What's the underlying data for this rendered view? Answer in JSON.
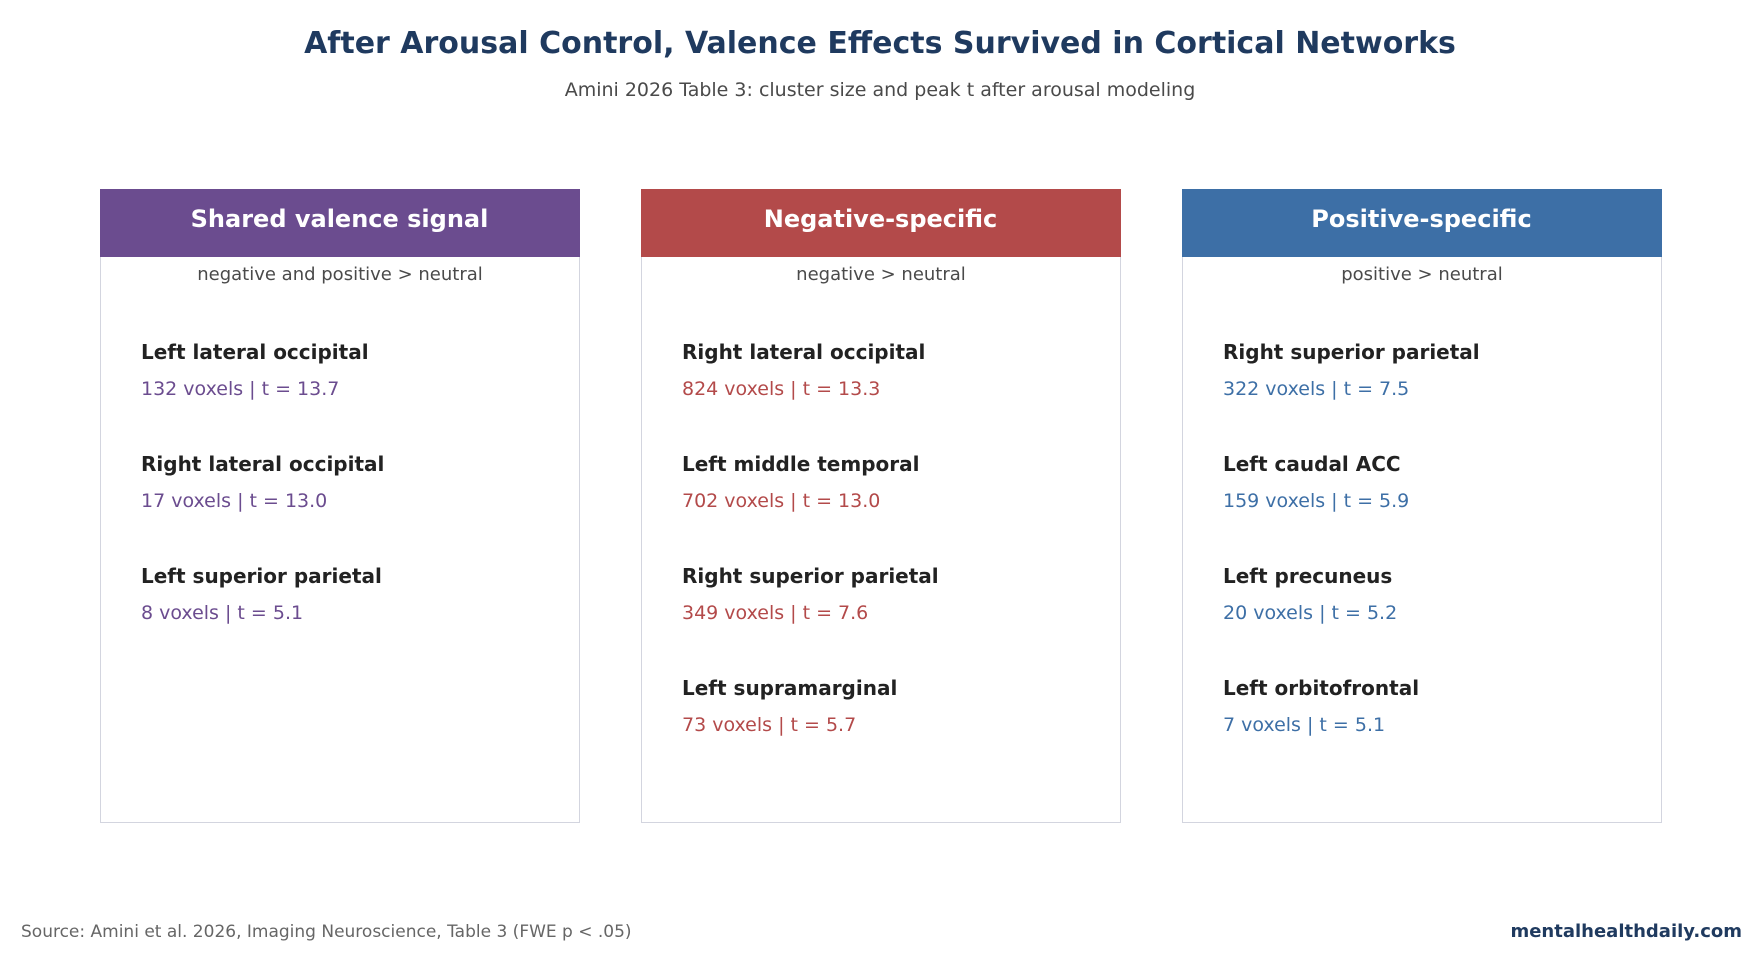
{
  "title": "After Arousal Control, Valence Effects Survived in Cortical Networks",
  "subtitle": "Amini 2026 Table 3: cluster size and peak t after arousal modeling",
  "source": "Source: Amini et al. 2026, Imaging Neuroscience, Table 3 (FWE p < .05)",
  "brand": "mentalhealthdaily.com",
  "chart_data": {
    "type": "table",
    "panels": [
      {
        "title": "Shared valence signal",
        "description": "negative and positive > neutral",
        "color": "#6b4c8f",
        "regions": [
          {
            "name": "Left lateral occipital",
            "voxels": 132,
            "t": 13.7,
            "stats": "132 voxels | t = 13.7"
          },
          {
            "name": "Right lateral occipital",
            "voxels": 17,
            "t": 13.0,
            "stats": "17 voxels | t = 13.0"
          },
          {
            "name": "Left superior parietal",
            "voxels": 8,
            "t": 5.1,
            "stats": "8 voxels | t = 5.1"
          }
        ]
      },
      {
        "title": "Negative-specific",
        "description": "negative > neutral",
        "color": "#b34a4a",
        "regions": [
          {
            "name": "Right lateral occipital",
            "voxels": 824,
            "t": 13.3,
            "stats": "824 voxels | t = 13.3"
          },
          {
            "name": "Left middle temporal",
            "voxels": 702,
            "t": 13.0,
            "stats": "702 voxels | t = 13.0"
          },
          {
            "name": "Right superior parietal",
            "voxels": 349,
            "t": 7.6,
            "stats": "349 voxels | t = 7.6"
          },
          {
            "name": "Left supramarginal",
            "voxels": 73,
            "t": 5.7,
            "stats": "73 voxels | t = 5.7"
          }
        ]
      },
      {
        "title": "Positive-specific",
        "description": "positive > neutral",
        "color": "#3d6fa6",
        "regions": [
          {
            "name": "Right superior parietal",
            "voxels": 322,
            "t": 7.5,
            "stats": "322 voxels | t = 7.5"
          },
          {
            "name": "Left caudal ACC",
            "voxels": 159,
            "t": 5.9,
            "stats": "159 voxels | t = 5.9"
          },
          {
            "name": "Left precuneus",
            "voxels": 20,
            "t": 5.2,
            "stats": "20 voxels | t = 5.2"
          },
          {
            "name": "Left orbitofrontal",
            "voxels": 7,
            "t": 5.1,
            "stats": "7 voxels | t = 5.1"
          }
        ]
      }
    ]
  }
}
